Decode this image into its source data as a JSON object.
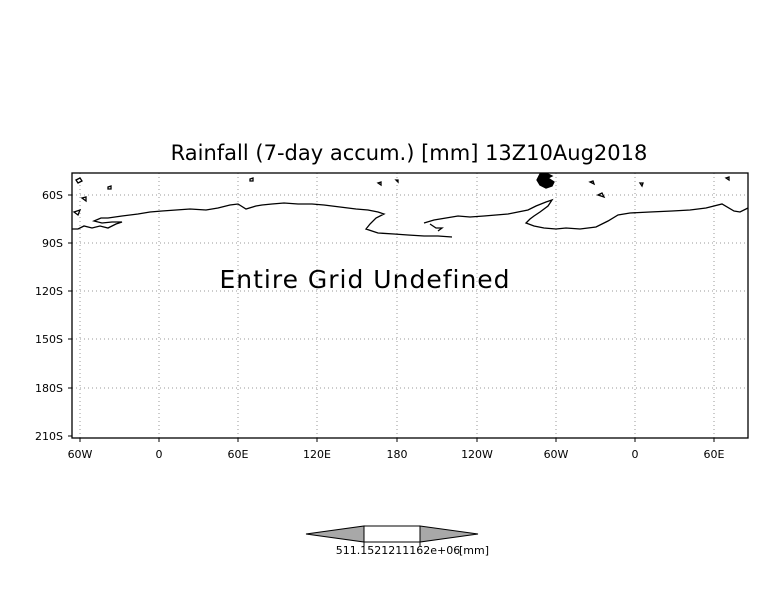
{
  "map": {
    "title": "Rainfall (7-day accum.) [mm] 13Z10Aug2018",
    "status_message": "Entire Grid Undefined",
    "lat_labels": [
      "60S",
      "90S",
      "120S",
      "150S",
      "180S",
      "210S"
    ],
    "lon_labels": [
      "60W",
      "0",
      "60E",
      "120E",
      "180",
      "120W",
      "60W",
      "0",
      "60E"
    ],
    "grid": true,
    "grid_style": "dotted",
    "colors": {
      "background": "#ffffff",
      "frame": "#000000",
      "grid": "#9a9a9a",
      "coastline": "#000000",
      "colorbar_arrows": "#a8a8a8",
      "colorbar_center": "#ffffff"
    }
  },
  "colorbar": {
    "value_label": "511.1521211162e+06",
    "unit_label": "[mm]"
  }
}
